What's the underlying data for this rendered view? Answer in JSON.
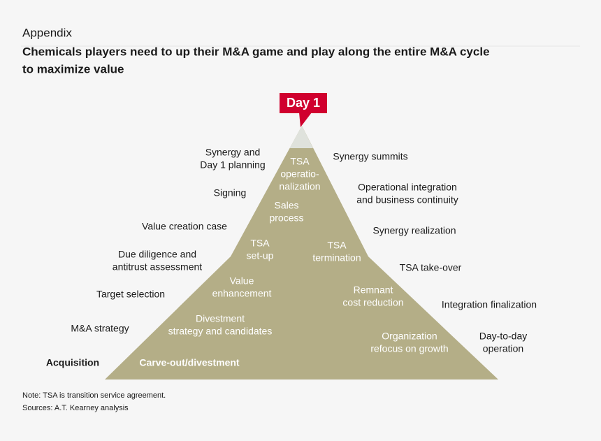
{
  "header": {
    "section": "Appendix",
    "title_lines": [
      "Chemicals players need to up their M&A game and play along the entire M&A cycle",
      "to maximize value"
    ]
  },
  "callout": "Day 1",
  "left_labels": [
    {
      "lines": [
        "Synergy and",
        "Day 1 planning"
      ]
    },
    {
      "lines": [
        "Signing"
      ]
    },
    {
      "lines": [
        "Value creation case"
      ]
    },
    {
      "lines": [
        "Due diligence and",
        "antitrust assessment"
      ]
    },
    {
      "lines": [
        "Target selection"
      ]
    },
    {
      "lines": [
        "M&A strategy"
      ]
    }
  ],
  "right_labels": [
    {
      "lines": [
        "Synergy summits"
      ]
    },
    {
      "lines": [
        "Operational integration",
        "and business continuity"
      ]
    },
    {
      "lines": [
        "Synergy realization"
      ]
    },
    {
      "lines": [
        "TSA take-over"
      ]
    },
    {
      "lines": [
        "Integration finalization"
      ]
    },
    {
      "lines": [
        "Day-to-day",
        "operation"
      ]
    }
  ],
  "pyramid_labels": [
    {
      "lines": [
        "TSA",
        "operatio-",
        "nalization"
      ]
    },
    {
      "lines": [
        "Sales",
        "process"
      ]
    },
    {
      "lines": [
        "TSA",
        "set-up"
      ]
    },
    {
      "lines": [
        "TSA",
        "termination"
      ]
    },
    {
      "lines": [
        "Value",
        "enhancement"
      ]
    },
    {
      "lines": [
        "Divestment",
        "strategy and candidates"
      ]
    },
    {
      "lines": [
        "Remnant",
        "cost reduction"
      ]
    },
    {
      "lines": [
        "Organization",
        "refocus on growth"
      ]
    }
  ],
  "side_labels": {
    "acquisition": "Acquisition",
    "divestment": "Carve-out/divestment"
  },
  "footnotes": [
    "Note: TSA is transition service agreement.",
    "Sources: A.T. Kearney analysis"
  ]
}
